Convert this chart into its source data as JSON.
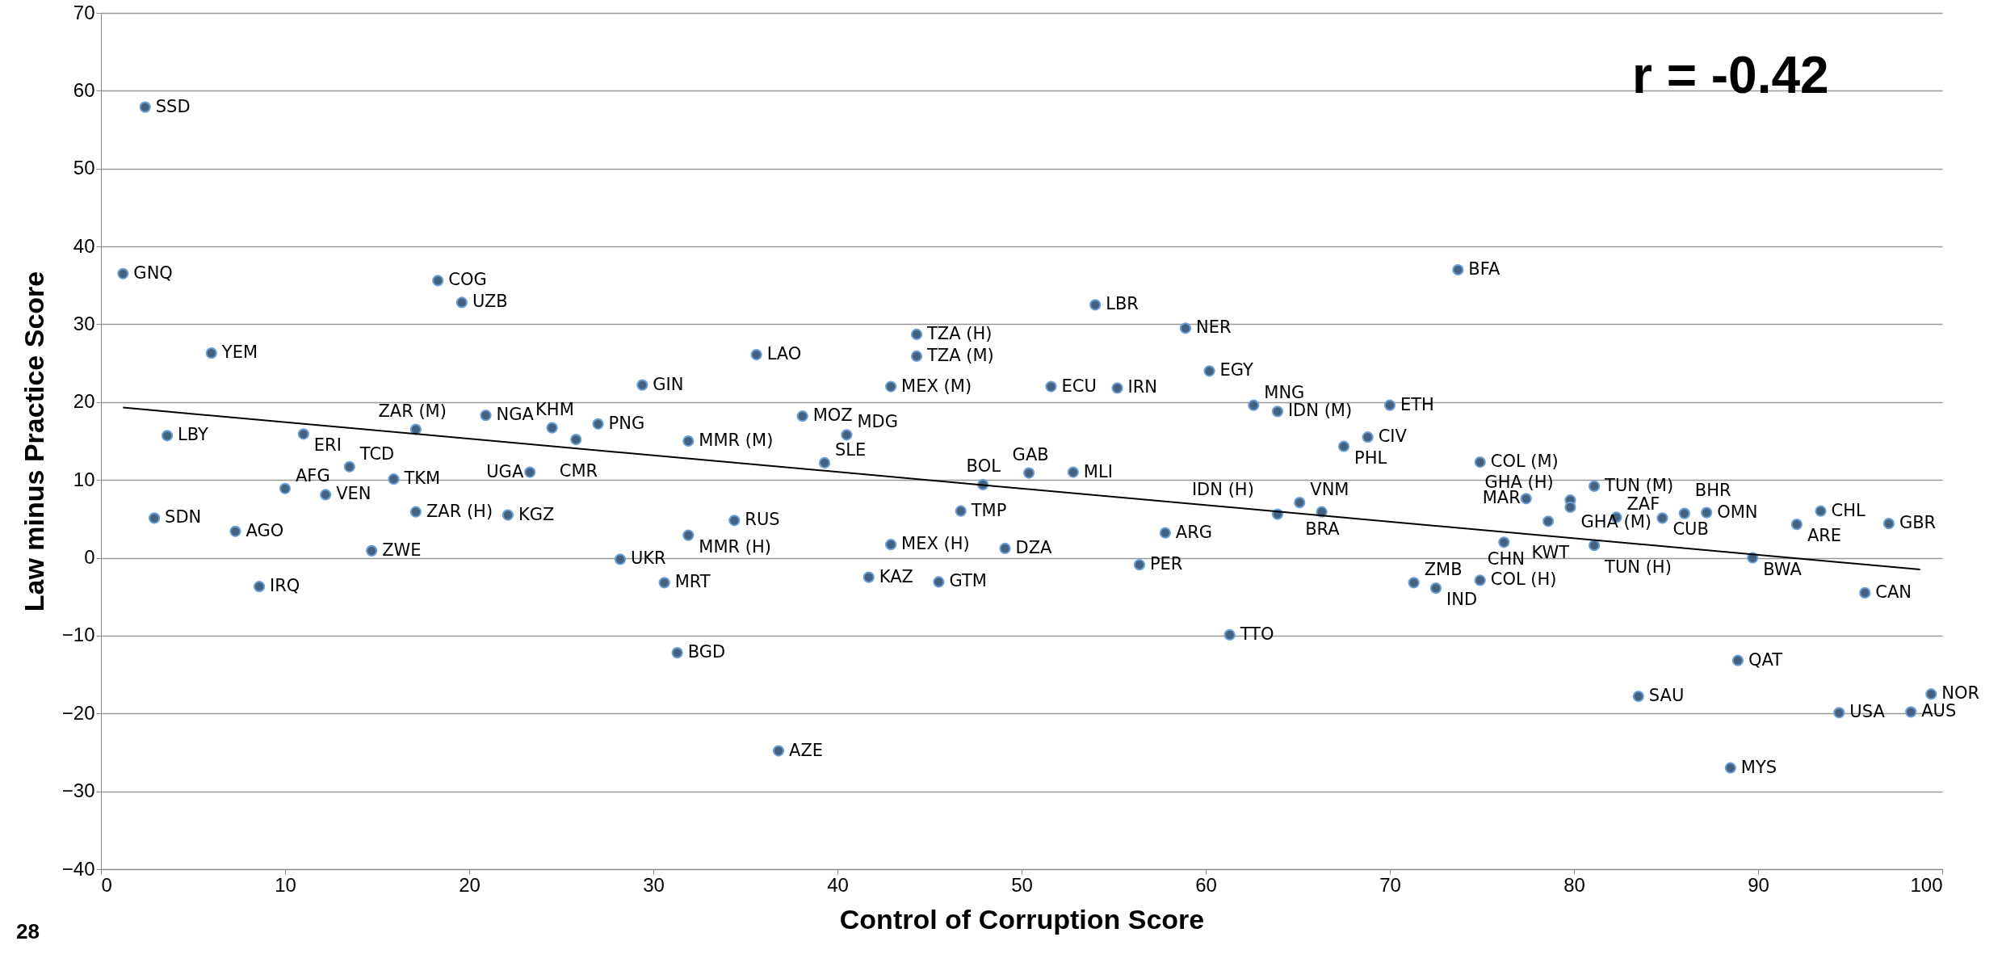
{
  "chart_data": {
    "type": "scatter",
    "xlabel": "Control of Corruption Score",
    "ylabel": "Law minus Practice Score",
    "xlim": [
      0,
      100
    ],
    "xticks": [
      0,
      10,
      20,
      30,
      40,
      50,
      60,
      70,
      80,
      90,
      100
    ],
    "ylim": [
      -40,
      70
    ],
    "yticks": [
      -40,
      -30,
      -20,
      -10,
      0,
      10,
      20,
      30,
      40,
      50,
      60,
      70
    ],
    "grid": "y",
    "marker": "circle",
    "annotations": [
      "r = -0.42",
      "28"
    ],
    "series": [
      {
        "color": "#44617f",
        "x": [
          2.4,
          1.2,
          18.3,
          19.6,
          6.0,
          3.6,
          11.0,
          17.1,
          20.9,
          24.5,
          27.0,
          25.8,
          31.9,
          38.1,
          13.5,
          15.9,
          23.3,
          10.0,
          12.2,
          17.1,
          22.1,
          34.4,
          31.9,
          14.7,
          28.2,
          30.6,
          39.3,
          2.9,
          7.3,
          8.6,
          29.4,
          35.6,
          44.3,
          44.3,
          42.9,
          51.6,
          55.2,
          40.5,
          50.4,
          52.8,
          47.9,
          46.7,
          42.9,
          49.1,
          57.8,
          56.4,
          41.7,
          45.5,
          54.0,
          58.9,
          60.2,
          73.7,
          62.6,
          63.9,
          70.0,
          68.8,
          67.5,
          74.9,
          81.1,
          77.4,
          79.8,
          79.8,
          65.1,
          66.3,
          63.9,
          78.6,
          82.3,
          84.8,
          86.0,
          87.2,
          93.4,
          92.1,
          97.1,
          76.2,
          81.1,
          89.7,
          71.3,
          72.5,
          74.9,
          95.8,
          61.3,
          31.3,
          36.8,
          83.5,
          88.9,
          88.5,
          94.4,
          98.3,
          99.4
        ],
        "values": [
          57.9,
          36.5,
          35.6,
          32.8,
          26.3,
          15.7,
          15.9,
          16.5,
          18.3,
          16.7,
          17.2,
          15.2,
          15.0,
          18.2,
          11.7,
          10.1,
          11.0,
          8.9,
          8.1,
          5.9,
          5.5,
          4.8,
          2.9,
          0.9,
          -0.2,
          -3.2,
          12.2,
          5.1,
          3.4,
          -3.7,
          22.2,
          26.1,
          28.7,
          25.9,
          22.0,
          22.0,
          21.8,
          15.8,
          10.9,
          11.0,
          9.4,
          6.0,
          1.7,
          1.2,
          3.2,
          -0.9,
          -2.5,
          -3.1,
          32.5,
          29.5,
          24.0,
          37.0,
          19.6,
          18.8,
          19.6,
          15.5,
          14.3,
          12.3,
          9.2,
          7.6,
          7.4,
          6.5,
          7.1,
          5.9,
          5.6,
          4.7,
          5.2,
          5.1,
          5.7,
          5.8,
          6.0,
          4.3,
          4.4,
          2.0,
          1.6,
          0.0,
          -3.2,
          -3.9,
          -2.9,
          -4.5,
          -9.9,
          -12.2,
          -24.8,
          -17.8,
          -13.2,
          -27.0,
          -19.9,
          -19.8,
          -17.5
        ],
        "value_labels": [
          "SSD",
          "GNQ",
          "COG",
          "UZB",
          "YEM",
          "LBY",
          "ERI",
          "ZAR (M)",
          "NGA",
          "KHM",
          "PNG",
          "CMR",
          "MMR (M)",
          "MOZ",
          "TCD",
          "TKM",
          "UGA",
          "AFG",
          "VEN",
          "ZAR (H)",
          "KGZ",
          "RUS",
          "MMR (H)",
          "ZWE",
          "UKR",
          "MRT",
          "SLE",
          "SDN",
          "AGO",
          "IRQ",
          "GIN",
          "LAO",
          "TZA (H)",
          "TZA (M)",
          "MEX (M)",
          "ECU",
          "IRN",
          "MDG",
          "GAB",
          "MLI",
          "BOL",
          "TMP",
          "MEX (H)",
          "DZA",
          "ARG",
          "PER",
          "KAZ",
          "GTM",
          "LBR",
          "NER",
          "EGY",
          "BFA",
          "MNG",
          "IDN (M)",
          "ETH",
          "CIV",
          "PHL",
          "COL (M)",
          "TUN (M)",
          "MAR",
          "GHA (M)",
          "GHA (H)",
          "VNM",
          "BRA",
          "IDN (H)",
          "KWT",
          "ZAF",
          "CUB",
          "BHR",
          "OMN",
          "CHL",
          "ARE",
          "GBR",
          "CHN",
          "TUN (H)",
          "BWA",
          "ZMB",
          "IND",
          "COL (H)",
          "CAN",
          "TTO",
          "BGD",
          "AZE",
          "SAU",
          "QAT",
          "MYS",
          "USA",
          "AUS",
          "NOR"
        ]
      },
      {
        "type": "line",
        "marker": "none",
        "color": "#000000",
        "x": [
          1.2,
          98.8
        ],
        "values": [
          19.3,
          -1.5
        ]
      }
    ]
  }
}
